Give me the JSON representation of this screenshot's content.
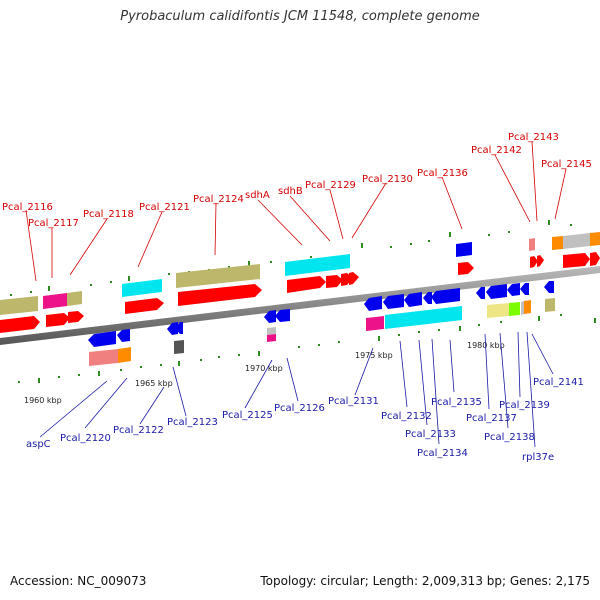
{
  "title": "Pyrobaculum calidifontis JCM 11548, complete genome",
  "footer": {
    "accession": "Accession: NC_009073",
    "summary": "Topology: circular; Length: 2,009,313 bp; Genes: 2,175"
  },
  "colors": {
    "red": "#ff0000",
    "blue": "#0000ee",
    "cyan": "#00e5ee",
    "olive": "#bdb76b",
    "magenta": "#ee1289",
    "salmon": "#f08080",
    "orange": "#ff8c00",
    "gray": "#c0c0c0",
    "darkgray": "#555555",
    "khaki": "#eee685",
    "lime": "#7cfc00",
    "green_tick": "#2e8b20",
    "backbone": "#777777"
  },
  "top_labels": [
    "Pcal_2116",
    "Pcal_2117",
    "Pcal_2118",
    "Pcal_2121",
    "Pcal_2124",
    "sdhA",
    "sdhB",
    "Pcal_2129",
    "Pcal_2130",
    "Pcal_2136",
    "Pcal_2142",
    "Pcal_2143",
    "Pcal_2145"
  ],
  "bottom_labels": [
    "aspC",
    "Pcal_2120",
    "Pcal_2122",
    "Pcal_2123",
    "Pcal_2125",
    "Pcal_2126",
    "Pcal_2131",
    "Pcal_2132",
    "Pcal_2133",
    "Pcal_2134",
    "Pcal_2135",
    "Pcal_2137",
    "Pcal_2138",
    "Pcal_2139",
    "rpl37e",
    "Pcal_2141"
  ],
  "kbp_labels": [
    "1960 kbp",
    "1965 kbp",
    "1970 kbp",
    "1975 kbp",
    "1980 kbp"
  ]
}
